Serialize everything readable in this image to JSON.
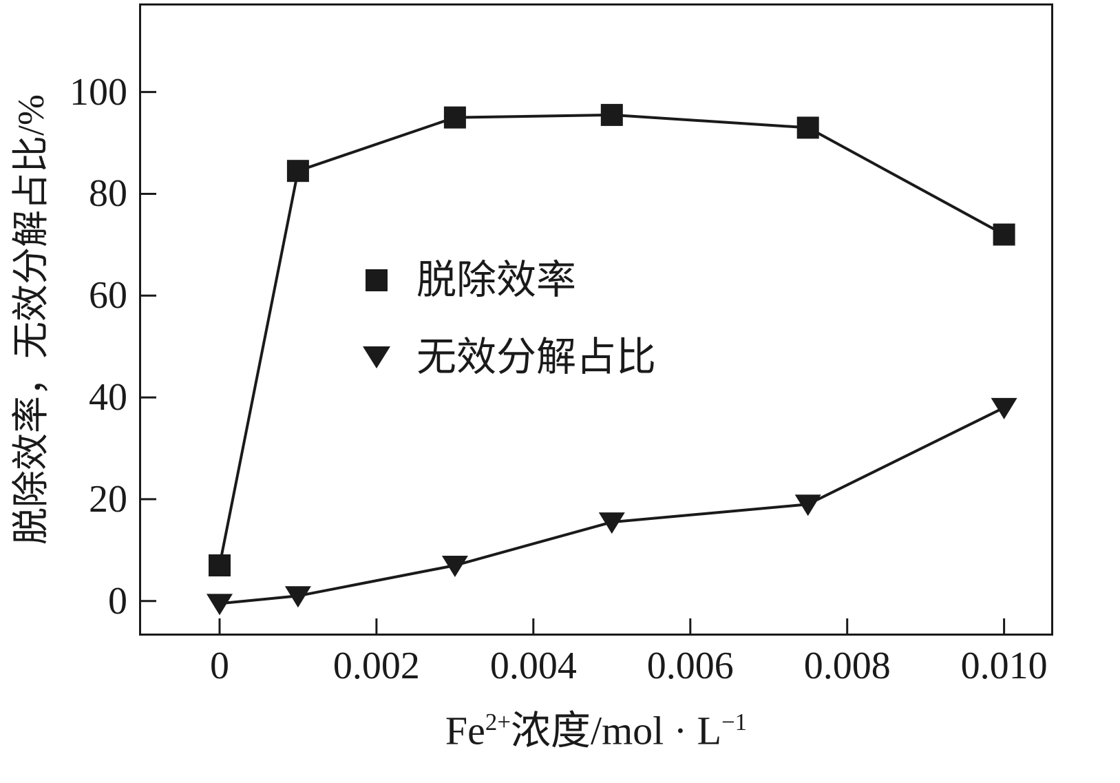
{
  "figure": {
    "background": "#ffffff",
    "ink_color": "#1a1a1a"
  },
  "chart_data": {
    "type": "line",
    "title": "",
    "xlabel_parts": {
      "base1": "Fe",
      "sup1": "2+",
      "base2": "浓度/mol · L",
      "sup2": "−1"
    },
    "xlabel_text": "Fe2+浓度/mol·L−1",
    "ylabel": "脱除效率，无效分解占比/%",
    "x": [
      0,
      0.001,
      0.003,
      0.005,
      0.0075,
      0.01
    ],
    "series": [
      {
        "name": "脱除效率",
        "marker": "square",
        "values": [
          7,
          84.5,
          95,
          95.5,
          93,
          72
        ]
      },
      {
        "name": "无效分解占比",
        "marker": "triangle-down",
        "values": [
          -0.5,
          1,
          7,
          15.5,
          19,
          38
        ]
      }
    ],
    "xticks": [
      0,
      0.002,
      0.004,
      0.006,
      0.008,
      0.01
    ],
    "xtick_labels": [
      "0",
      "0.002",
      "0.004",
      "0.006",
      "0.008",
      "0.010"
    ],
    "yticks": [
      0,
      20,
      40,
      60,
      80,
      100
    ],
    "ytick_labels": [
      "0",
      "20",
      "40",
      "60",
      "80",
      "100"
    ],
    "xlim": [
      -0.001,
      0.0106
    ],
    "ylim": [
      -6.4,
      117
    ],
    "grid": false,
    "legend_position": "inside-center-left",
    "line_color": "#1a1a1a",
    "marker_color": "#1a1a1a"
  }
}
